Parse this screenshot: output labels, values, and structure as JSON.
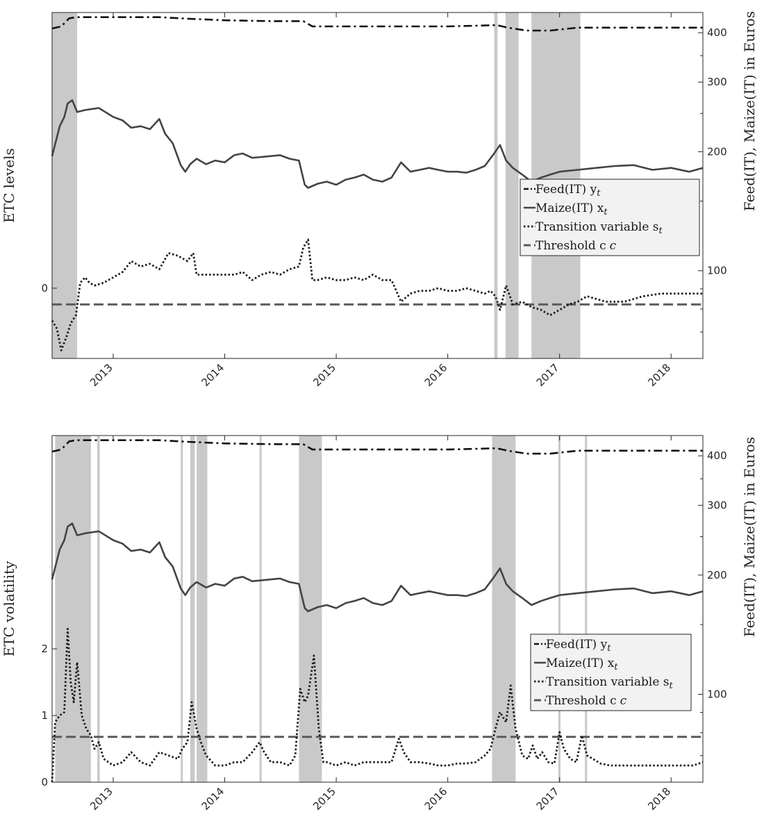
{
  "chart_data": [
    {
      "type": "line",
      "ylabel_left": "ETC levels",
      "ylabel_right": "Feed(IT), Maize(IT) in Euros",
      "x_ticks": [
        "2013",
        "2014",
        "2015",
        "2016",
        "2017",
        "2018"
      ],
      "xlim": [
        "2012-06-15",
        "2018-04-15"
      ],
      "left_ticks": [
        "0"
      ],
      "left_ylim": [
        -2.6,
        10.2
      ],
      "right_scale": "log",
      "right_ticks": [
        "100",
        "200",
        "300",
        "400"
      ],
      "right_ylim": [
        60,
        450
      ],
      "grid": false,
      "legend_position": "right-middle",
      "legend": [
        "Feed(IT) y",
        "Maize(IT) x",
        "Transition variable s",
        "Threshold c"
      ],
      "legend_subscript": "t",
      "legend_c": "c",
      "threshold": -0.6,
      "shaded_regimes": [
        [
          "2012-06-15",
          "2012-09-05"
        ],
        [
          "2016-06-01",
          "2016-06-12"
        ],
        [
          "2016-07-08",
          "2016-08-20"
        ],
        [
          "2016-10-01",
          "2017-03-10"
        ]
      ],
      "series": [
        {
          "name": "Feed(IT)",
          "style": "dashdot",
          "axis": "right",
          "x": [
            "2012-06-15",
            "2012-07-15",
            "2012-08-10",
            "2012-09-01",
            "2012-12-01",
            "2013-03-01",
            "2013-06-01",
            "2013-09-01",
            "2014-01-01",
            "2014-06-01",
            "2014-09-15",
            "2014-10-15",
            "2015-03-01",
            "2016-01-01",
            "2016-06-10",
            "2016-07-15",
            "2016-09-15",
            "2016-12-01",
            "2017-03-01",
            "2018-04-15"
          ],
          "values": [
            410,
            415,
            435,
            438,
            438,
            438,
            438,
            434,
            430,
            428,
            428,
            415,
            415,
            415,
            418,
            412,
            405,
            405,
            412,
            412
          ]
        },
        {
          "name": "Maize(IT)",
          "style": "solid",
          "axis": "right",
          "x": [
            "2012-06-15",
            "2012-07-10",
            "2012-07-25",
            "2012-08-05",
            "2012-08-20",
            "2012-09-05",
            "2012-10-01",
            "2012-11-15",
            "2013-01-01",
            "2013-02-01",
            "2013-03-01",
            "2013-04-01",
            "2013-05-01",
            "2013-06-01",
            "2013-06-20",
            "2013-07-15",
            "2013-08-10",
            "2013-08-25",
            "2013-09-10",
            "2013-10-01",
            "2013-11-01",
            "2013-12-01",
            "2014-01-01",
            "2014-02-01",
            "2014-03-01",
            "2014-04-01",
            "2014-05-01",
            "2014-06-01",
            "2014-07-01",
            "2014-08-01",
            "2014-09-01",
            "2014-09-20",
            "2014-10-01",
            "2014-11-01",
            "2014-12-01",
            "2015-01-01",
            "2015-02-01",
            "2015-03-01",
            "2015-04-01",
            "2015-05-01",
            "2015-06-01",
            "2015-07-01",
            "2015-08-01",
            "2015-09-01",
            "2015-10-01",
            "2015-11-01",
            "2015-12-01",
            "2016-01-01",
            "2016-02-01",
            "2016-03-01",
            "2016-04-01",
            "2016-05-01",
            "2016-06-01",
            "2016-06-20",
            "2016-07-10",
            "2016-08-01",
            "2016-09-01",
            "2016-10-01",
            "2016-11-01",
            "2016-12-01",
            "2017-01-01",
            "2017-03-01",
            "2017-05-01",
            "2017-07-01",
            "2017-09-01",
            "2017-11-01",
            "2018-01-01",
            "2018-03-01",
            "2018-04-15"
          ],
          "values": [
            195,
            232,
            245,
            265,
            270,
            252,
            255,
            258,
            245,
            240,
            230,
            232,
            228,
            242,
            222,
            210,
            185,
            178,
            186,
            192,
            186,
            190,
            188,
            196,
            198,
            193,
            194,
            195,
            196,
            192,
            190,
            165,
            162,
            166,
            168,
            165,
            170,
            172,
            175,
            170,
            168,
            172,
            188,
            178,
            180,
            182,
            180,
            178,
            178,
            177,
            180,
            184,
            198,
            208,
            190,
            182,
            175,
            168,
            172,
            175,
            178,
            180,
            182,
            184,
            185,
            180,
            182,
            178,
            182
          ]
        },
        {
          "name": "Transition variable",
          "style": "dotted",
          "axis": "left",
          "x": [
            "2012-06-15",
            "2012-07-01",
            "2012-07-15",
            "2012-08-01",
            "2012-08-15",
            "2012-09-01",
            "2012-09-15",
            "2012-10-01",
            "2012-10-15",
            "2012-11-01",
            "2012-12-01",
            "2013-01-01",
            "2013-02-01",
            "2013-03-01",
            "2013-04-01",
            "2013-05-01",
            "2013-06-01",
            "2013-07-01",
            "2013-08-01",
            "2013-09-01",
            "2013-09-20",
            "2013-10-01",
            "2013-11-01",
            "2013-12-01",
            "2014-01-01",
            "2014-02-01",
            "2014-03-01",
            "2014-04-01",
            "2014-05-01",
            "2014-06-01",
            "2014-07-01",
            "2014-08-01",
            "2014-09-01",
            "2014-09-15",
            "2014-10-01",
            "2014-10-15",
            "2014-11-01",
            "2014-12-01",
            "2015-01-01",
            "2015-02-01",
            "2015-03-01",
            "2015-04-01",
            "2015-05-01",
            "2015-06-01",
            "2015-07-01",
            "2015-08-01",
            "2015-09-01",
            "2015-10-01",
            "2015-11-01",
            "2015-12-01",
            "2016-01-01",
            "2016-02-01",
            "2016-03-01",
            "2016-04-01",
            "2016-05-01",
            "2016-05-20",
            "2016-06-05",
            "2016-06-20",
            "2016-07-10",
            "2016-08-01",
            "2016-09-01",
            "2016-10-01",
            "2016-11-01",
            "2016-12-01",
            "2017-01-01",
            "2017-02-01",
            "2017-03-01",
            "2017-04-01",
            "2017-06-01",
            "2017-08-01",
            "2017-10-01",
            "2017-12-01",
            "2018-02-01",
            "2018-04-15"
          ],
          "values": [
            -1.2,
            -1.5,
            -2.3,
            -1.8,
            -1.3,
            -1.0,
            0.2,
            0.4,
            0.2,
            0.1,
            0.2,
            0.4,
            0.6,
            1.0,
            0.8,
            0.9,
            0.7,
            1.3,
            1.2,
            1.0,
            1.3,
            0.5,
            0.5,
            0.5,
            0.5,
            0.5,
            0.6,
            0.3,
            0.5,
            0.6,
            0.5,
            0.7,
            0.8,
            1.5,
            1.8,
            0.3,
            0.3,
            0.4,
            0.3,
            0.3,
            0.4,
            0.3,
            0.5,
            0.3,
            0.3,
            -0.5,
            -0.2,
            -0.1,
            -0.1,
            0.0,
            -0.1,
            -0.1,
            0.0,
            -0.1,
            -0.2,
            -0.1,
            -0.3,
            -0.8,
            0.1,
            -0.6,
            -0.5,
            -0.7,
            -0.8,
            -1.0,
            -0.8,
            -0.6,
            -0.5,
            -0.3,
            -0.5,
            -0.5,
            -0.3,
            -0.2,
            -0.2,
            -0.2
          ]
        }
      ]
    },
    {
      "type": "line",
      "ylabel_left": "ETC volatility",
      "ylabel_right": "Feed(IT), Maize(IT) in Euros",
      "x_ticks": [
        "2013",
        "2014",
        "2015",
        "2016",
        "2017",
        "2018"
      ],
      "xlim": [
        "2012-06-15",
        "2018-04-15"
      ],
      "left_ticks": [
        "0",
        "1",
        "2"
      ],
      "left_ylim": [
        0,
        5.2
      ],
      "right_scale": "log",
      "right_ticks": [
        "100",
        "200",
        "300",
        "400"
      ],
      "right_ylim": [
        60,
        450
      ],
      "grid": false,
      "legend_position": "right-middle",
      "legend": [
        "Feed(IT) y",
        "Maize(IT) x",
        "Transition variable s",
        "Threshold c"
      ],
      "legend_subscript": "t",
      "legend_c": "c",
      "threshold": 0.68,
      "shaded_regimes": [
        [
          "2012-06-25",
          "2012-10-20"
        ],
        [
          "2012-11-10",
          "2012-11-18"
        ],
        [
          "2013-08-10",
          "2013-08-16"
        ],
        [
          "2013-09-10",
          "2013-09-25"
        ],
        [
          "2013-10-01",
          "2013-11-05"
        ],
        [
          "2014-04-25",
          "2014-05-01"
        ],
        [
          "2014-09-01",
          "2014-11-15"
        ],
        [
          "2016-05-25",
          "2016-08-10"
        ],
        [
          "2016-12-28",
          "2017-01-04"
        ],
        [
          "2017-03-25",
          "2017-04-01"
        ]
      ],
      "series": [
        {
          "name": "Feed(IT)",
          "style": "dashdot",
          "axis": "right",
          "x": [
            "2012-06-15",
            "2012-07-15",
            "2012-08-10",
            "2012-09-01",
            "2012-12-01",
            "2013-03-01",
            "2013-06-01",
            "2013-09-01",
            "2014-01-01",
            "2014-06-01",
            "2014-09-15",
            "2014-10-15",
            "2015-03-01",
            "2016-01-01",
            "2016-06-10",
            "2016-07-15",
            "2016-09-15",
            "2016-12-01",
            "2017-03-01",
            "2018-04-15"
          ],
          "values": [
            410,
            415,
            435,
            438,
            438,
            438,
            438,
            434,
            430,
            428,
            428,
            415,
            415,
            415,
            418,
            412,
            405,
            405,
            412,
            412
          ]
        },
        {
          "name": "Maize(IT)",
          "style": "solid",
          "axis": "right",
          "x": [
            "2012-06-15",
            "2012-07-10",
            "2012-07-25",
            "2012-08-05",
            "2012-08-20",
            "2012-09-05",
            "2012-10-01",
            "2012-11-15",
            "2013-01-01",
            "2013-02-01",
            "2013-03-01",
            "2013-04-01",
            "2013-05-01",
            "2013-06-01",
            "2013-06-20",
            "2013-07-15",
            "2013-08-10",
            "2013-08-25",
            "2013-09-10",
            "2013-10-01",
            "2013-11-01",
            "2013-12-01",
            "2014-01-01",
            "2014-02-01",
            "2014-03-01",
            "2014-04-01",
            "2014-05-01",
            "2014-06-01",
            "2014-07-01",
            "2014-08-01",
            "2014-09-01",
            "2014-09-20",
            "2014-10-01",
            "2014-11-01",
            "2014-12-01",
            "2015-01-01",
            "2015-02-01",
            "2015-03-01",
            "2015-04-01",
            "2015-05-01",
            "2015-06-01",
            "2015-07-01",
            "2015-08-01",
            "2015-09-01",
            "2015-10-01",
            "2015-11-01",
            "2015-12-01",
            "2016-01-01",
            "2016-02-01",
            "2016-03-01",
            "2016-04-01",
            "2016-05-01",
            "2016-06-01",
            "2016-06-20",
            "2016-07-10",
            "2016-08-01",
            "2016-09-01",
            "2016-10-01",
            "2016-11-01",
            "2016-12-01",
            "2017-01-01",
            "2017-03-01",
            "2017-05-01",
            "2017-07-01",
            "2017-09-01",
            "2017-11-01",
            "2018-01-01",
            "2018-03-01",
            "2018-04-15"
          ],
          "values": [
            195,
            232,
            245,
            265,
            270,
            252,
            255,
            258,
            245,
            240,
            230,
            232,
            228,
            242,
            222,
            210,
            185,
            178,
            186,
            192,
            186,
            190,
            188,
            196,
            198,
            193,
            194,
            195,
            196,
            192,
            190,
            165,
            162,
            166,
            168,
            165,
            170,
            172,
            175,
            170,
            168,
            172,
            188,
            178,
            180,
            182,
            180,
            178,
            178,
            177,
            180,
            184,
            198,
            208,
            190,
            182,
            175,
            168,
            172,
            175,
            178,
            180,
            182,
            184,
            185,
            180,
            182,
            178,
            182
          ]
        },
        {
          "name": "Transition variable",
          "style": "dotted",
          "axis": "left",
          "x": [
            "2012-06-15",
            "2012-06-25",
            "2012-07-10",
            "2012-07-25",
            "2012-08-05",
            "2012-08-15",
            "2012-08-25",
            "2012-09-05",
            "2012-09-20",
            "2012-10-05",
            "2012-10-20",
            "2012-11-01",
            "2012-11-15",
            "2012-12-01",
            "2013-01-01",
            "2013-02-01",
            "2013-03-01",
            "2013-04-01",
            "2013-05-01",
            "2013-06-01",
            "2013-07-01",
            "2013-08-01",
            "2013-08-15",
            "2013-09-01",
            "2013-09-15",
            "2013-10-01",
            "2013-10-15",
            "2013-11-01",
            "2013-12-01",
            "2014-01-01",
            "2014-02-01",
            "2014-03-01",
            "2014-04-01",
            "2014-04-25",
            "2014-05-10",
            "2014-06-01",
            "2014-07-01",
            "2014-08-01",
            "2014-08-20",
            "2014-09-05",
            "2014-09-20",
            "2014-10-01",
            "2014-10-20",
            "2014-11-05",
            "2014-11-20",
            "2014-12-01",
            "2015-01-01",
            "2015-02-01",
            "2015-03-01",
            "2015-04-01",
            "2015-05-01",
            "2015-06-01",
            "2015-07-01",
            "2015-07-25",
            "2015-08-10",
            "2015-09-01",
            "2015-10-01",
            "2015-11-01",
            "2015-12-01",
            "2016-01-01",
            "2016-02-01",
            "2016-03-01",
            "2016-04-01",
            "2016-05-01",
            "2016-05-20",
            "2016-06-05",
            "2016-06-20",
            "2016-07-10",
            "2016-07-25",
            "2016-08-10",
            "2016-09-01",
            "2016-09-20",
            "2016-10-05",
            "2016-10-20",
            "2016-11-05",
            "2016-11-25",
            "2016-12-15",
            "2017-01-01",
            "2017-01-15",
            "2017-02-05",
            "2017-02-25",
            "2017-03-15",
            "2017-04-01",
            "2017-04-20",
            "2017-05-15",
            "2017-06-15",
            "2017-07-15",
            "2017-08-15",
            "2017-09-15",
            "2017-10-15",
            "2017-11-15",
            "2017-12-15",
            "2018-01-15",
            "2018-02-15",
            "2018-03-15",
            "2018-04-15"
          ],
          "values": [
            0.0,
            0.9,
            1.0,
            1.05,
            2.3,
            1.5,
            1.2,
            1.8,
            1.0,
            0.8,
            0.7,
            0.5,
            0.6,
            0.35,
            0.25,
            0.3,
            0.45,
            0.3,
            0.25,
            0.45,
            0.4,
            0.35,
            0.5,
            0.6,
            1.2,
            0.8,
            0.6,
            0.4,
            0.25,
            0.25,
            0.3,
            0.3,
            0.45,
            0.6,
            0.45,
            0.3,
            0.3,
            0.25,
            0.4,
            1.4,
            1.2,
            1.3,
            1.9,
            0.8,
            0.3,
            0.3,
            0.25,
            0.3,
            0.25,
            0.3,
            0.3,
            0.3,
            0.3,
            0.65,
            0.45,
            0.3,
            0.3,
            0.28,
            0.25,
            0.25,
            0.28,
            0.28,
            0.3,
            0.4,
            0.5,
            0.8,
            1.05,
            0.9,
            1.45,
            0.8,
            0.4,
            0.35,
            0.55,
            0.35,
            0.45,
            0.3,
            0.28,
            0.75,
            0.5,
            0.35,
            0.3,
            0.7,
            0.4,
            0.35,
            0.28,
            0.25,
            0.25,
            0.25,
            0.25,
            0.25,
            0.25,
            0.25,
            0.25,
            0.25,
            0.25,
            0.3
          ]
        }
      ]
    }
  ]
}
